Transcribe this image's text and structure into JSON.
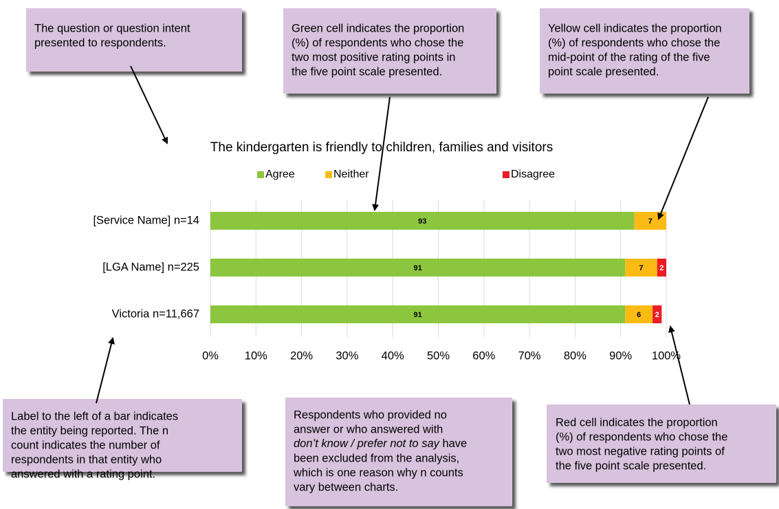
{
  "chart_data": {
    "type": "stacked-bar-horizontal",
    "title": "The kindergarten is friendly to children, families and visitors",
    "categories": [
      "[Service Name] n=14",
      "[LGA Name] n=225",
      "Victoria n=11,667"
    ],
    "series": [
      {
        "name": "Agree",
        "color": "#8cc63e",
        "values": [
          93,
          91,
          91
        ]
      },
      {
        "name": "Neither",
        "color": "#fbbb14",
        "values": [
          7,
          7,
          6
        ]
      },
      {
        "name": "Disagree",
        "color": "#ec1c24",
        "values": [
          0,
          2,
          2
        ]
      }
    ],
    "xlim": [
      0,
      100
    ],
    "xticks": [
      {
        "value": 0,
        "label": "0%"
      },
      {
        "value": 10,
        "label": "10%"
      },
      {
        "value": 20,
        "label": "20%"
      },
      {
        "value": 30,
        "label": "30%"
      },
      {
        "value": 40,
        "label": "40%"
      },
      {
        "value": 50,
        "label": "50%"
      },
      {
        "value": 60,
        "label": "60%"
      },
      {
        "value": 70,
        "label": "70%"
      },
      {
        "value": 80,
        "label": "80%"
      },
      {
        "value": 90,
        "label": "90%"
      },
      {
        "value": 100,
        "label": "100%"
      }
    ],
    "grid": true,
    "legend": "top"
  },
  "annotations": [
    {
      "lines": [
        "The question or question intent",
        "presented to respondents."
      ]
    },
    {
      "lines": [
        "Green cell indicates the proportion",
        "(%) of respondents who chose the",
        "two most positive rating points in",
        "the five point scale presented."
      ]
    },
    {
      "lines": [
        "Yellow cell indicates the proportion",
        "(%) of respondents who chose the",
        "mid-point of the rating of the five",
        "point scale presented."
      ]
    },
    {
      "lines": [
        "Label to the left of a bar indicates",
        "the entity being reported. The n",
        "count indicates the number of",
        "respondents in that entity who",
        "answered with a rating point."
      ]
    },
    {
      "lines": [
        "Respondents who provided no",
        "answer or who answered with",
        [
          "don’t know / prefer not to say",
          " have"
        ],
        "been excluded from the analysis,",
        "which is one reason why n counts",
        "vary between charts."
      ]
    },
    {
      "lines": [
        "Red cell indicates the proportion",
        "(%) of respondents who chose the",
        "two most negative rating points of",
        "the five point scale presented."
      ]
    }
  ]
}
